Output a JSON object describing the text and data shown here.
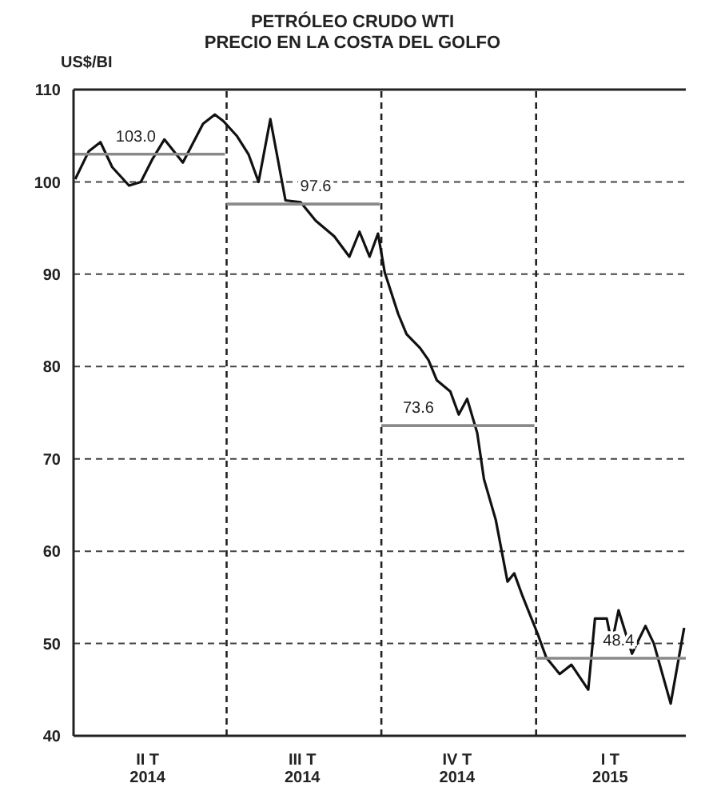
{
  "chart_data": {
    "type": "line",
    "title": "PETRÓLEO CRUDO WTI",
    "subtitle": "PRECIO EN LA COSTA DEL GOLFO",
    "ylabel": "US$/BI",
    "ylim": [
      40,
      110
    ],
    "yticks": [
      40,
      50,
      60,
      70,
      80,
      90,
      100,
      110
    ],
    "xlim": [
      "2014-04-01",
      "2015-03-31"
    ],
    "xticks": [
      {
        "value": "2014-05-15",
        "label": "II T\n2014"
      },
      {
        "value": "2014-08-15",
        "label": "III T\n2014"
      },
      {
        "value": "2014-11-15",
        "label": "IV T\n2014"
      },
      {
        "value": "2015-02-14",
        "label": "I T\n2015"
      }
    ],
    "grid": "y",
    "series": [
      {
        "color": "#111111",
        "x": [
          "2014-04-02",
          "2014-04-10",
          "2014-04-17",
          "2014-04-24",
          "2014-05-04",
          "2014-05-11",
          "2014-05-18",
          "2014-05-25",
          "2014-06-05",
          "2014-06-17",
          "2014-06-24",
          "2014-06-29",
          "2014-07-07",
          "2014-07-14",
          "2014-07-20",
          "2014-07-27",
          "2014-08-05",
          "2014-08-14",
          "2014-08-23",
          "2014-09-03",
          "2014-09-12",
          "2014-09-18",
          "2014-09-24",
          "2014-09-29",
          "2014-10-03",
          "2014-10-11",
          "2014-10-16",
          "2014-10-24",
          "2014-10-29",
          "2014-11-03",
          "2014-11-11",
          "2014-11-16",
          "2014-11-21",
          "2014-11-27",
          "2014-12-01",
          "2014-12-08",
          "2014-12-15",
          "2014-12-19",
          "2014-12-24",
          "2015-01-02",
          "2015-01-07",
          "2015-01-15",
          "2015-01-22",
          "2015-02-01",
          "2015-02-05",
          "2015-02-12",
          "2015-02-15",
          "2015-02-19",
          "2015-02-27",
          "2015-03-07",
          "2015-03-12",
          "2015-03-22",
          "2015-03-30"
        ],
        "values": [
          100.3,
          103.3,
          104.3,
          101.6,
          99.6,
          100,
          102.5,
          104.6,
          102.1,
          106.3,
          107.3,
          106.6,
          105,
          103,
          100,
          106.8,
          98,
          97.8,
          95.8,
          94.1,
          91.9,
          94.6,
          91.9,
          94.4,
          90.2,
          85.7,
          83.5,
          82,
          80.7,
          78.5,
          77.3,
          74.8,
          76.5,
          72.8,
          67.8,
          63.4,
          56.7,
          57.6,
          55.1,
          51,
          48.5,
          46.7,
          47.7,
          45,
          52.7,
          52.7,
          50,
          53.6,
          48.9,
          51.9,
          50,
          43.5,
          51.7
        ]
      },
      {
        "color": "#8a8a8a",
        "x": [
          "2014-04-01",
          "2014-06-30"
        ],
        "values": [
          103.0,
          103.0
        ]
      },
      {
        "color": "#8a8a8a",
        "x": [
          "2014-07-01",
          "2014-09-30"
        ],
        "values": [
          97.6,
          97.6
        ]
      },
      {
        "color": "#8a8a8a",
        "x": [
          "2014-10-01",
          "2014-12-31"
        ],
        "values": [
          73.6,
          73.6
        ]
      },
      {
        "color": "#8a8a8a",
        "x": [
          "2015-01-01",
          "2015-03-31"
        ],
        "values": [
          48.4,
          48.4
        ]
      }
    ],
    "annotations": [
      {
        "text": "103.0",
        "x": "2014-05-08",
        "y": 103.0
      },
      {
        "text": "97.6",
        "x": "2014-08-23",
        "y": 97.6
      },
      {
        "text": "73.6",
        "x": "2014-10-23",
        "y": 73.6
      },
      {
        "text": "48.4",
        "x": "2015-02-19",
        "y": 48.4
      }
    ],
    "ref_lines": [
      {
        "axis": "x",
        "value": "2014-07-01",
        "color": "#222222",
        "line_style": "dashed"
      },
      {
        "axis": "x",
        "value": "2014-10-01",
        "color": "#222222",
        "line_style": "dashed"
      },
      {
        "axis": "x",
        "value": "2015-01-01",
        "color": "#222222",
        "line_style": "dashed"
      }
    ]
  }
}
